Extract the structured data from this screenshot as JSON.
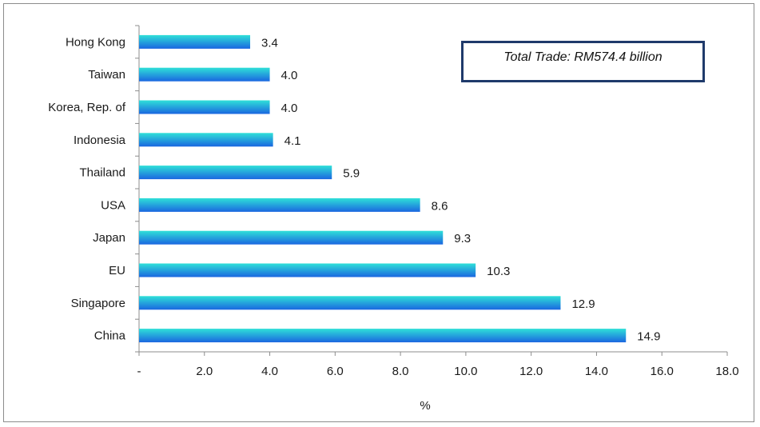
{
  "chart_data": {
    "type": "bar",
    "orientation": "horizontal",
    "categories": [
      "Hong Kong",
      "Taiwan",
      "Korea, Rep. of",
      "Indonesia",
      "Thailand",
      "USA",
      "Japan",
      "EU",
      "Singapore",
      "China"
    ],
    "values": [
      3.4,
      4.0,
      4.0,
      4.1,
      5.9,
      8.6,
      9.3,
      10.3,
      12.9,
      14.9
    ],
    "value_labels": [
      "3.4",
      "4.0",
      "4.0",
      "4.1",
      "5.9",
      "8.6",
      "9.3",
      "10.3",
      "12.9",
      "14.9"
    ],
    "xlabel": "%",
    "xlim": [
      0,
      18
    ],
    "xticks": [
      0,
      2,
      4,
      6,
      8,
      10,
      12,
      14,
      16,
      18
    ],
    "xtick_labels": [
      "-",
      "2.0",
      "4.0",
      "6.0",
      "8.0",
      "10.0",
      "12.0",
      "14.0",
      "16.0",
      "18.0"
    ],
    "annotation": "Total Trade: RM574.4 billion",
    "grid": false,
    "colors": {
      "bar_top": "#2fe0d8",
      "bar_bottom": "#1a66e0",
      "axis": "#8c8c8c",
      "box_border": "#1f3a6b"
    }
  }
}
